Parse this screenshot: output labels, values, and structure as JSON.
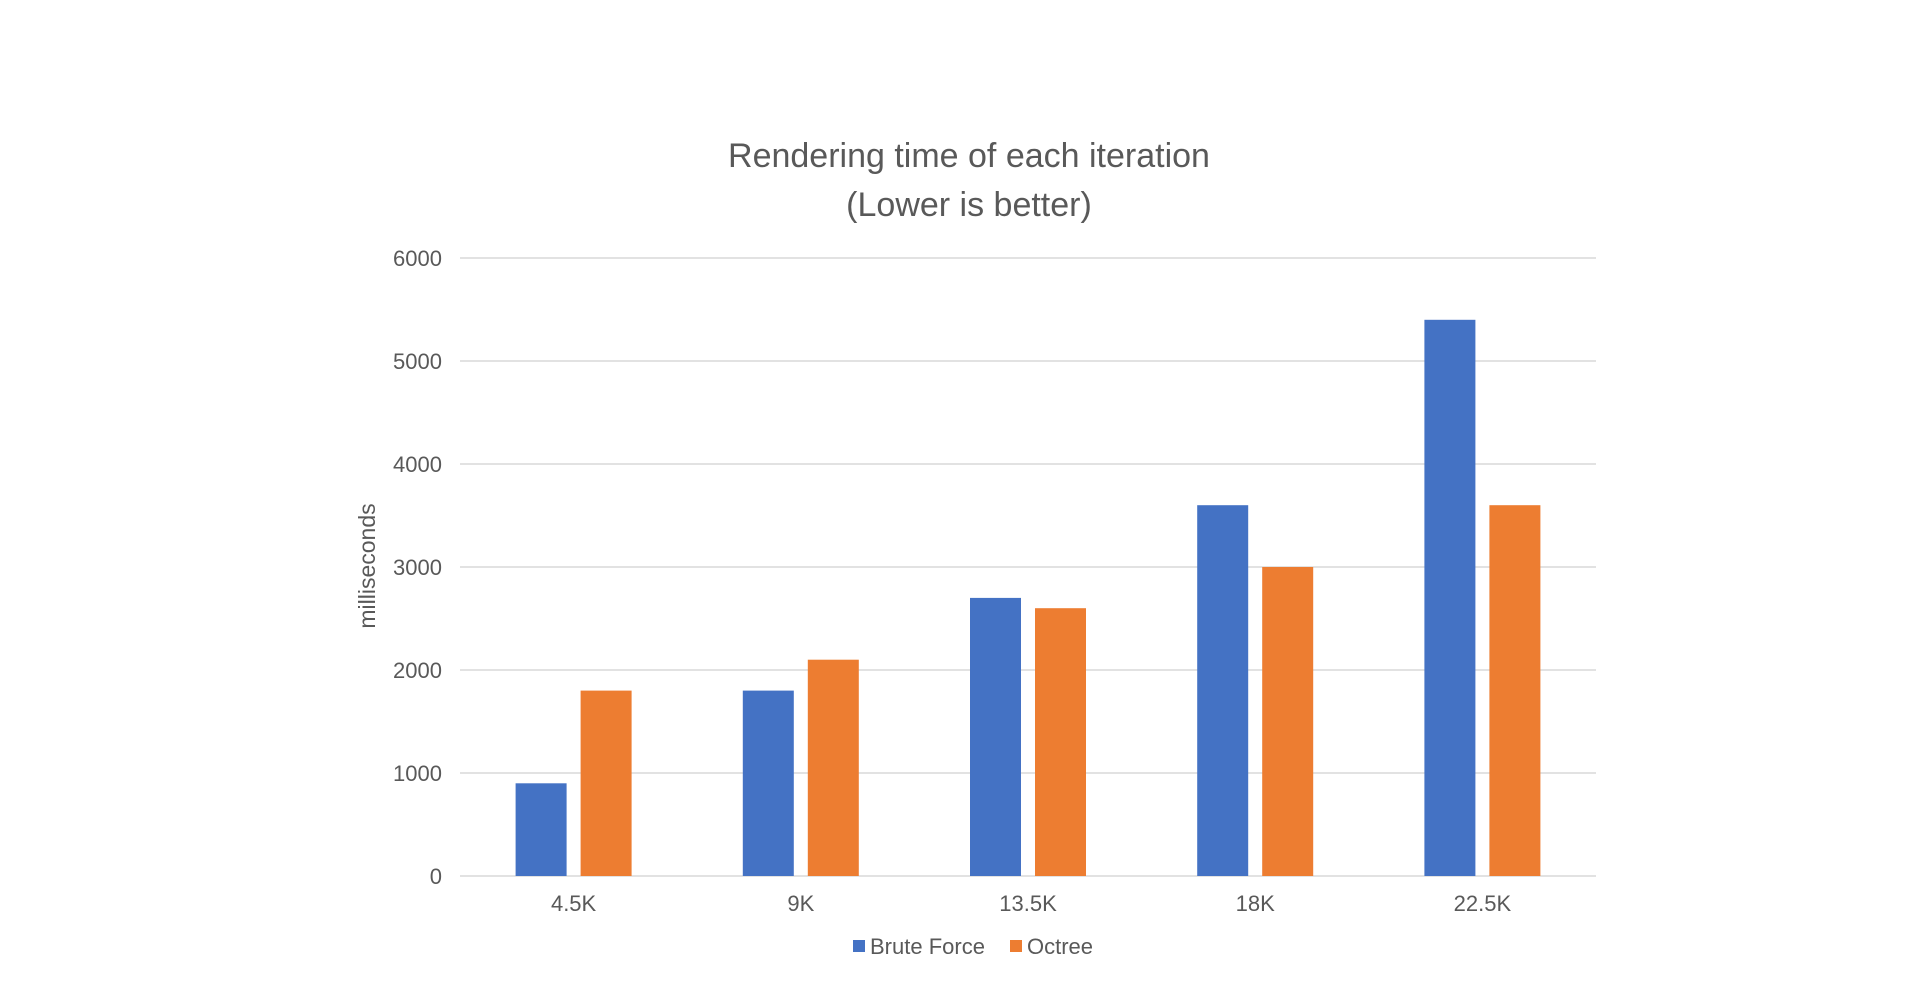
{
  "chart_data": {
    "type": "bar",
    "title": "Rendering time of each iteration",
    "subtitle": "(Lower is better)",
    "xlabel": "",
    "ylabel": "milliseconds",
    "categories": [
      "4.5K",
      "9K",
      "13.5K",
      "18K",
      "22.5K"
    ],
    "series": [
      {
        "name": "Brute Force",
        "color": "#4472c4",
        "values": [
          900,
          1800,
          2700,
          3600,
          5400
        ]
      },
      {
        "name": "Octree",
        "color": "#ed7d31",
        "values": [
          1800,
          2100,
          2600,
          3000,
          3600
        ]
      }
    ],
    "ylim": [
      0,
      6000
    ],
    "yticks": [
      "0",
      "1000",
      "2000",
      "3000",
      "4000",
      "5000",
      "6000"
    ],
    "grid": true,
    "legend_position": "bottom"
  }
}
